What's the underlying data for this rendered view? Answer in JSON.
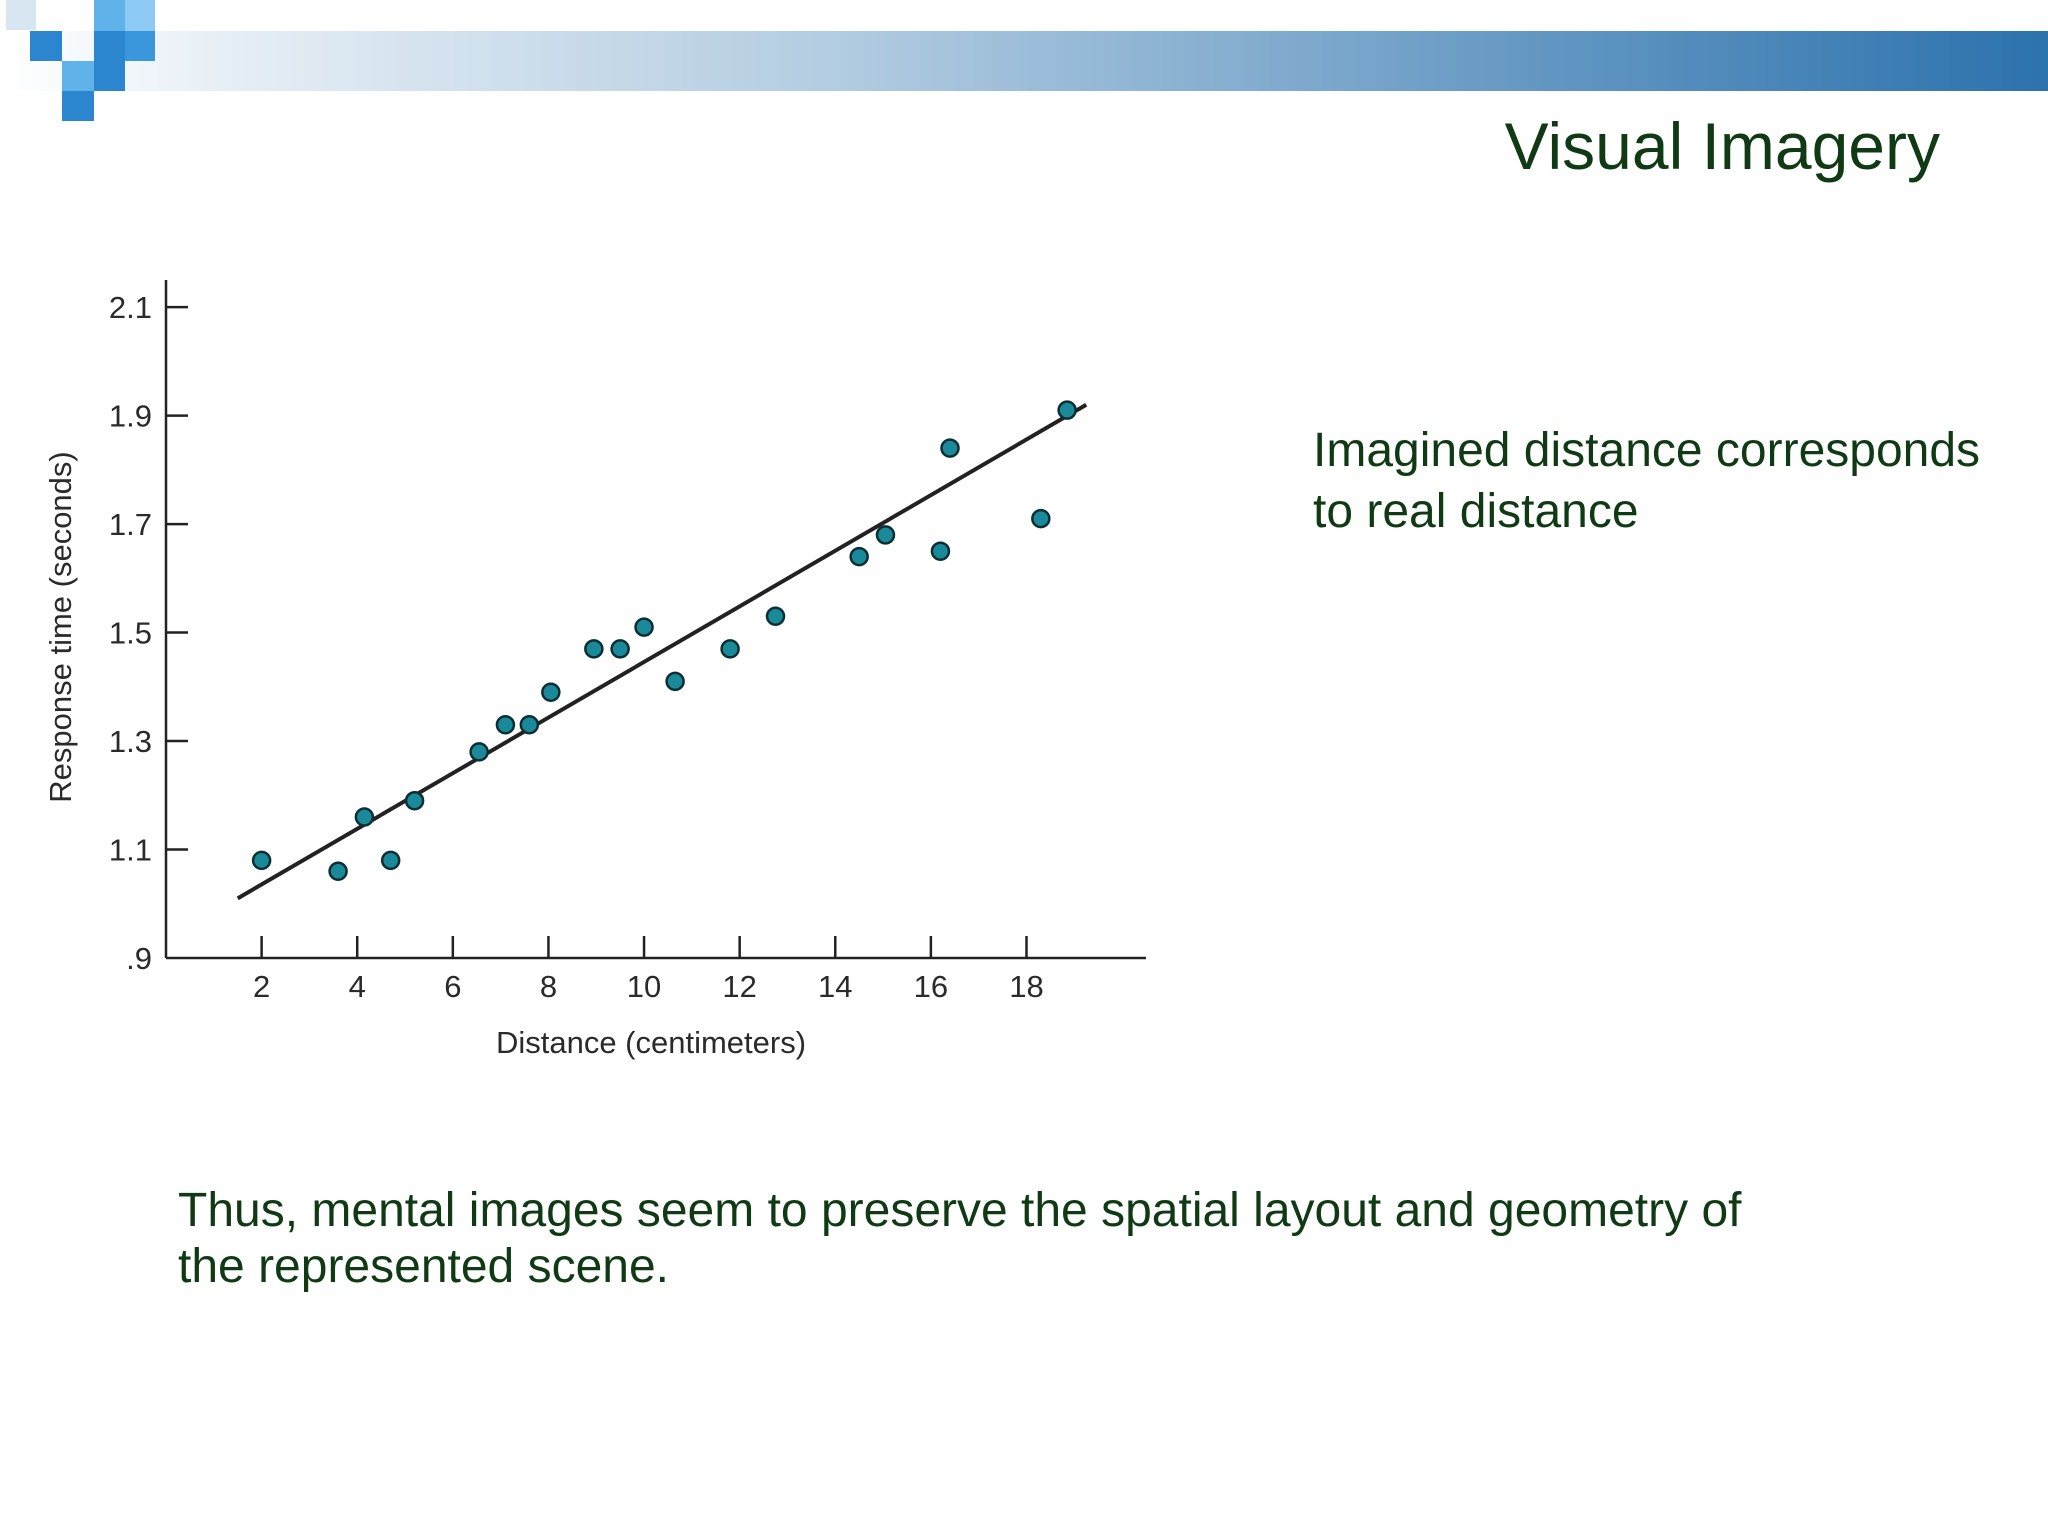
{
  "slide": {
    "title": "Visual Imagery",
    "callout_line1": "Imagined distance corresponds",
    "callout_line2": "to real distance",
    "conclusion_line1": "Thus, mental images seem to preserve the spatial layout and geometry of",
    "conclusion_line2": "the represented scene."
  },
  "colors": {
    "title_text": "#0f3a14",
    "band_end": "#2c72ad",
    "logo_blue": "#2b86cf",
    "logo_light": "#5fb2ea",
    "marker_fill": "#1a8a9a",
    "marker_stroke": "#0d2f34",
    "axis": "#222222"
  },
  "chart_data": {
    "type": "scatter",
    "title": "",
    "xlabel": "Distance (centimeters)",
    "ylabel": "Response time (seconds)",
    "xlim": [
      0,
      20.5
    ],
    "ylim": [
      0.9,
      2.15
    ],
    "x_ticks": [
      2,
      4,
      6,
      8,
      10,
      12,
      14,
      16,
      18
    ],
    "x_tick_labels": [
      "2",
      "4",
      "6",
      "8",
      "10",
      "12",
      "14",
      "16",
      "18"
    ],
    "y_ticks": [
      0.9,
      1.1,
      1.3,
      1.5,
      1.7,
      1.9,
      2.1
    ],
    "y_tick_labels": [
      ".9",
      "1.1",
      "1.3",
      "1.5",
      "1.7",
      "1.9",
      "2.1"
    ],
    "grid": false,
    "points": [
      {
        "x": 2.0,
        "y": 1.08
      },
      {
        "x": 3.6,
        "y": 1.06
      },
      {
        "x": 4.15,
        "y": 1.16
      },
      {
        "x": 4.7,
        "y": 1.08
      },
      {
        "x": 5.2,
        "y": 1.19
      },
      {
        "x": 6.55,
        "y": 1.28
      },
      {
        "x": 7.1,
        "y": 1.33
      },
      {
        "x": 7.6,
        "y": 1.33
      },
      {
        "x": 8.05,
        "y": 1.39
      },
      {
        "x": 8.95,
        "y": 1.47
      },
      {
        "x": 9.5,
        "y": 1.47
      },
      {
        "x": 10.0,
        "y": 1.51
      },
      {
        "x": 10.65,
        "y": 1.41
      },
      {
        "x": 11.8,
        "y": 1.47
      },
      {
        "x": 12.75,
        "y": 1.53
      },
      {
        "x": 14.5,
        "y": 1.64
      },
      {
        "x": 15.05,
        "y": 1.68
      },
      {
        "x": 16.2,
        "y": 1.65
      },
      {
        "x": 16.4,
        "y": 1.84
      },
      {
        "x": 18.3,
        "y": 1.71
      },
      {
        "x": 18.85,
        "y": 1.91
      }
    ],
    "fit_line": {
      "x": [
        1.5,
        19.25
      ],
      "y": [
        1.01,
        1.92
      ]
    }
  }
}
